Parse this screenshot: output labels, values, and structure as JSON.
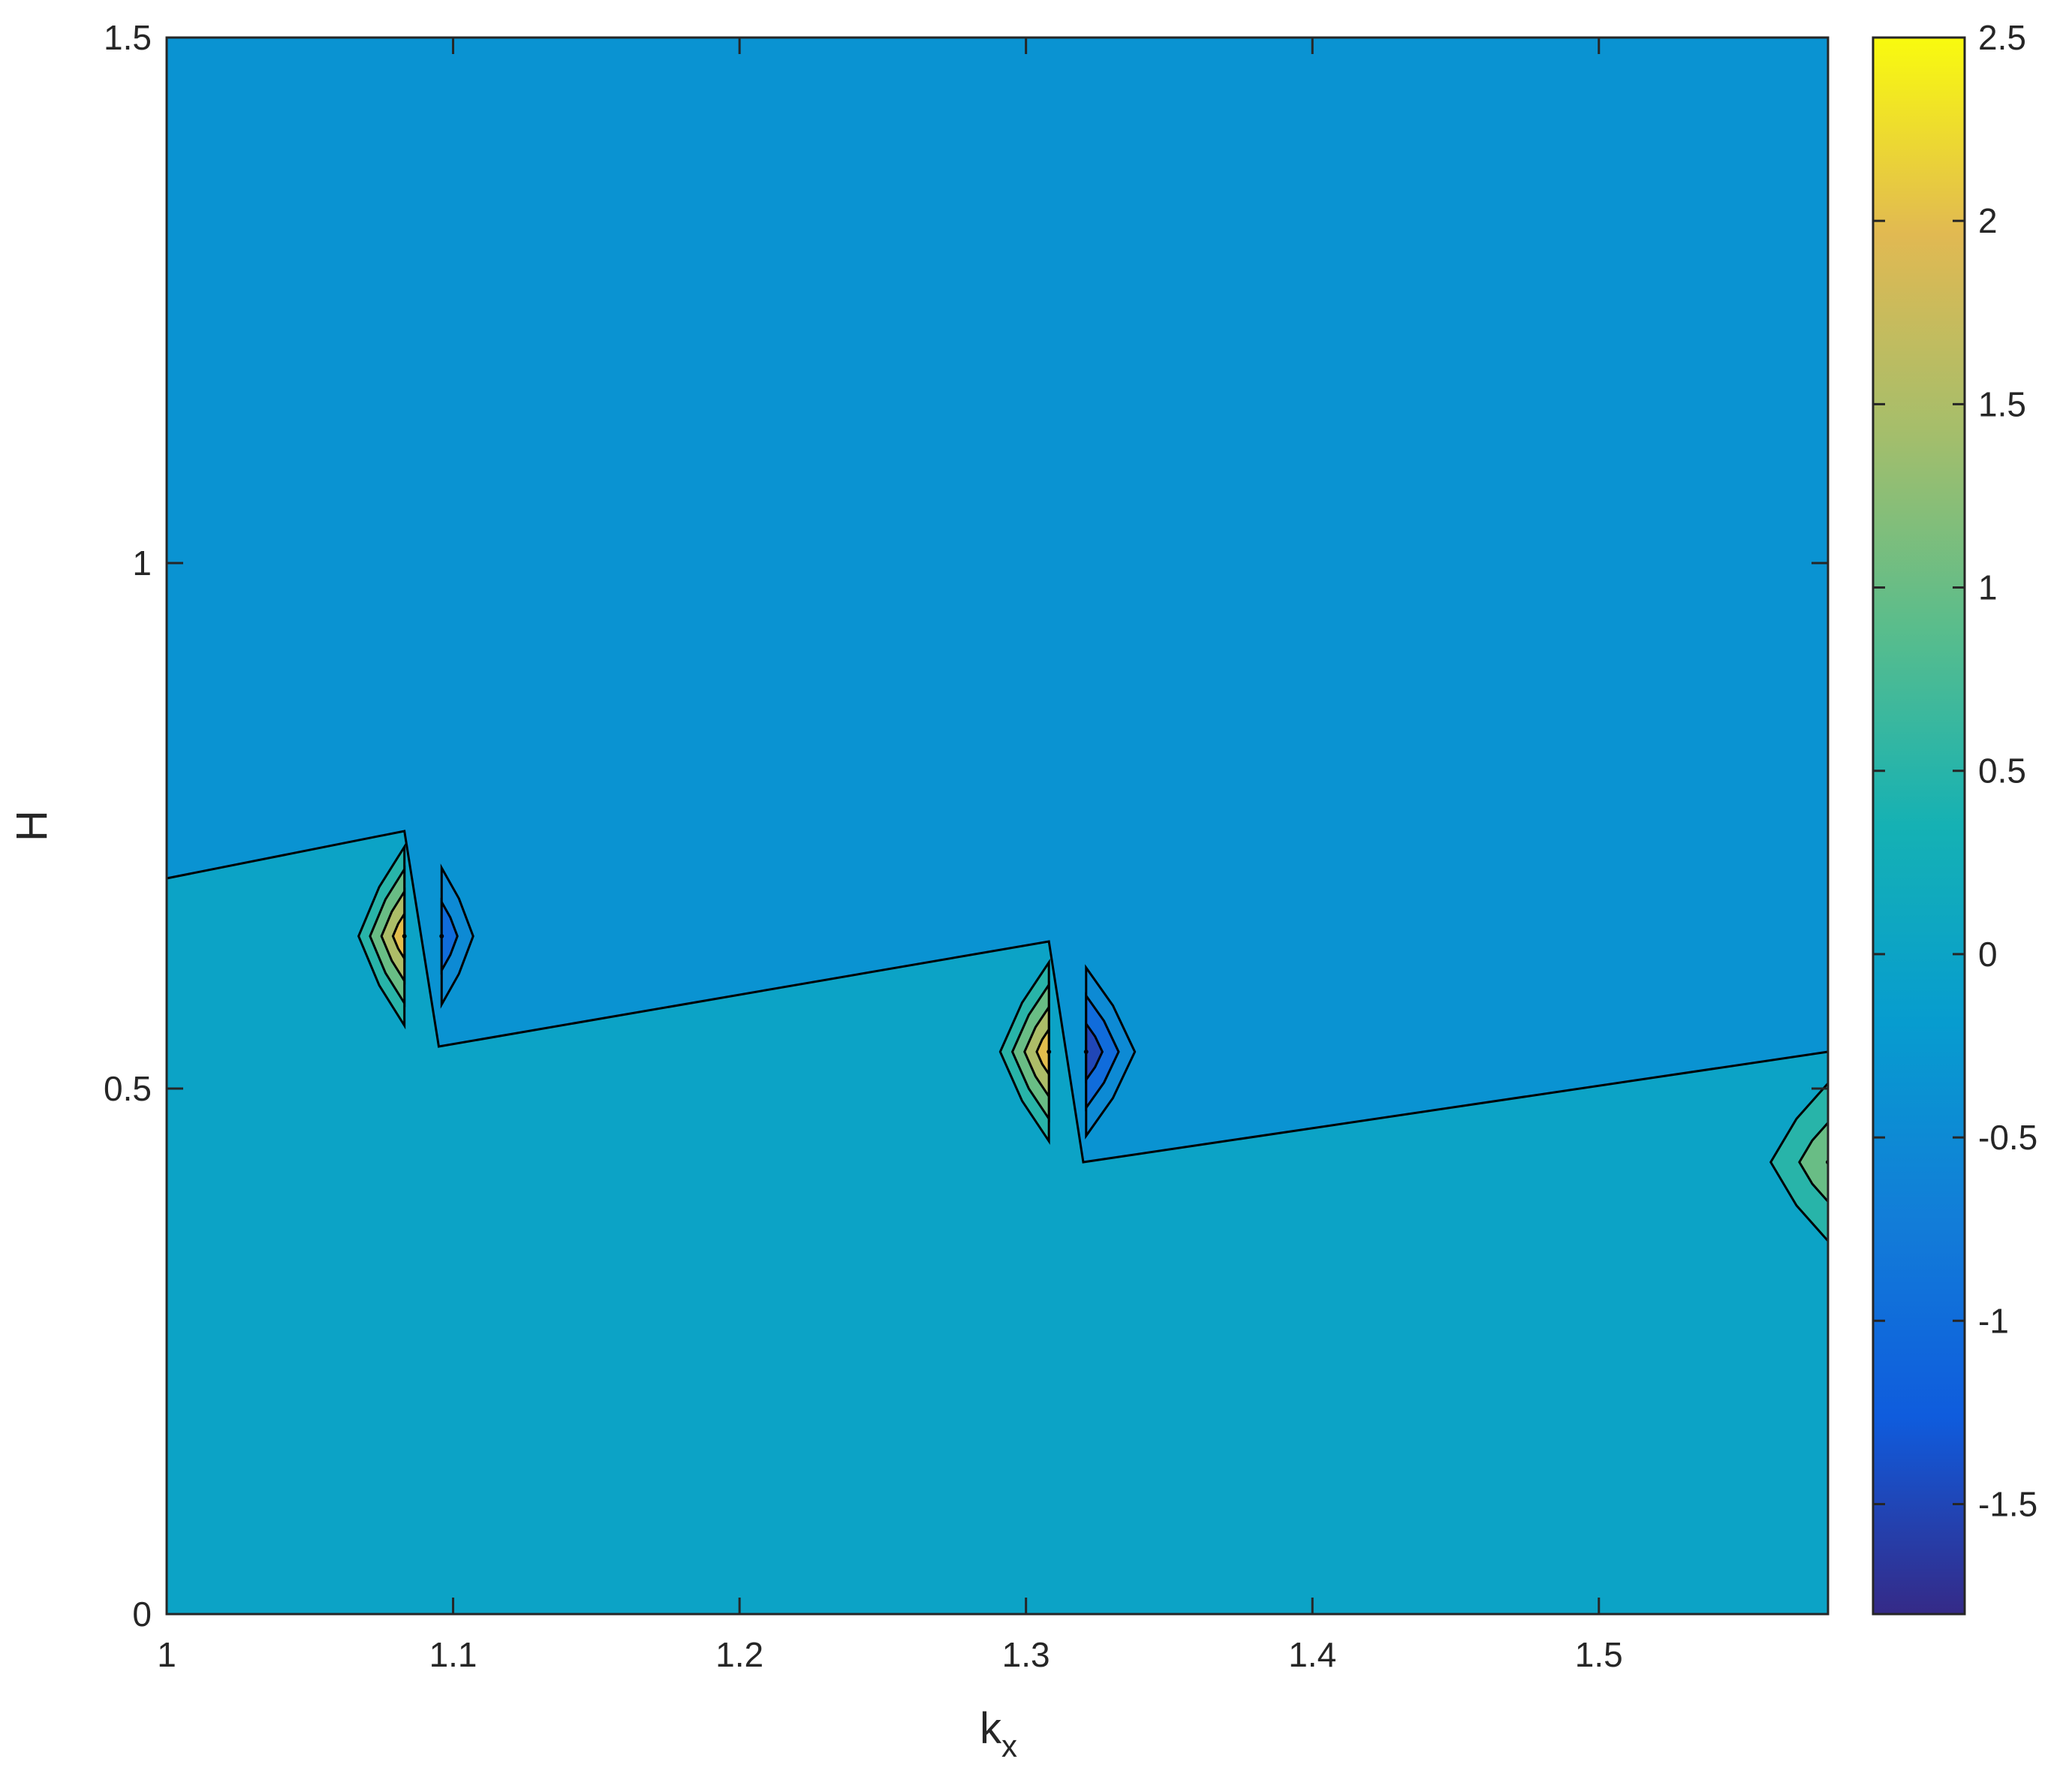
{
  "chart_data": {
    "type": "contour",
    "title": "",
    "xlabel": "k",
    "xlabel_subscript": "x",
    "ylabel": "H",
    "xlim": [
      1,
      1.58
    ],
    "ylim": [
      0,
      1.5
    ],
    "x_ticks": [
      1,
      1.1,
      1.2,
      1.3,
      1.4,
      1.5
    ],
    "x_tick_labels": [
      "1",
      "1.1",
      "1.2",
      "1.3",
      "1.4",
      "1.5"
    ],
    "y_ticks": [
      0,
      0.5,
      1,
      1.5
    ],
    "y_tick_labels": [
      "0",
      "0.5",
      "1",
      "1.5"
    ],
    "colormap": "parula",
    "colorbar": {
      "clim": [
        -1.8,
        2.5
      ],
      "ticks": [
        -1.5,
        -1,
        -0.5,
        0,
        0.5,
        1,
        1.5,
        2,
        2.5
      ],
      "tick_labels": [
        "-1.5",
        "-1",
        "-0.5",
        "0",
        "0.5",
        "1",
        "1.5",
        "2",
        "2.5"
      ]
    },
    "regions": {
      "upper_value": -0.35,
      "lower_value": 0.0,
      "boundary": [
        [
          1.0,
          0.7
        ],
        [
          1.083,
          0.745
        ],
        [
          1.095,
          0.54
        ],
        [
          1.308,
          0.64
        ],
        [
          1.32,
          0.43
        ],
        [
          1.58,
          0.535
        ]
      ]
    },
    "features": [
      {
        "kind": "peak",
        "x": 1.083,
        "y": 0.645,
        "value": 2.0,
        "levels": [
          0.5,
          1.0,
          1.5,
          2.0
        ],
        "dx_left": 0.016,
        "dx_right": 0.0,
        "dy": 0.085
      },
      {
        "kind": "trough",
        "x": 1.096,
        "y": 0.645,
        "value": -1.0,
        "levels": [
          -0.5,
          -1.0
        ],
        "dx_left": 0.0,
        "dx_right": 0.011,
        "dy": 0.065
      },
      {
        "kind": "peak",
        "x": 1.308,
        "y": 0.535,
        "value": 2.0,
        "levels": [
          0.5,
          1.0,
          1.5,
          2.0
        ],
        "dx_left": 0.017,
        "dx_right": 0.0,
        "dy": 0.085
      },
      {
        "kind": "trough",
        "x": 1.321,
        "y": 0.535,
        "value": -1.5,
        "levels": [
          -0.5,
          -1.0,
          -1.5
        ],
        "dx_left": 0.0,
        "dx_right": 0.017,
        "dy": 0.08
      },
      {
        "kind": "peak",
        "x": 1.58,
        "y": 0.43,
        "value": 1.0,
        "levels": [
          0.5,
          1.0
        ],
        "dx_left": 0.02,
        "dx_right": 0.0,
        "dy": 0.075
      }
    ]
  }
}
